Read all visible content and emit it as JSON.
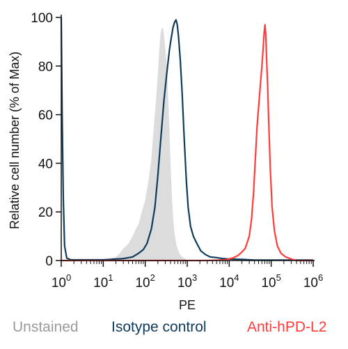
{
  "chart_data": {
    "type": "area",
    "title": "",
    "xlabel": "PE",
    "ylabel": "Relative cell number (% of Max)",
    "x_scale": "log",
    "xlim": [
      1,
      1000000
    ],
    "ylim": [
      0,
      100
    ],
    "x_ticks": [
      {
        "value": 1,
        "base": "10",
        "exp": "0"
      },
      {
        "value": 10,
        "base": "10",
        "exp": "1"
      },
      {
        "value": 100,
        "base": "10",
        "exp": "2"
      },
      {
        "value": 1000,
        "base": "10",
        "exp": "3"
      },
      {
        "value": 10000,
        "base": "10",
        "exp": "4"
      },
      {
        "value": 100000,
        "base": "10",
        "exp": "5"
      },
      {
        "value": 1000000,
        "base": "10",
        "exp": "6"
      }
    ],
    "y_ticks": [
      {
        "value": 0,
        "label": "0"
      },
      {
        "value": 20,
        "label": "20"
      },
      {
        "value": 40,
        "label": "40"
      },
      {
        "value": 60,
        "label": "60"
      },
      {
        "value": 80,
        "label": "80"
      },
      {
        "value": 100,
        "label": "100"
      }
    ],
    "grid": false,
    "legend_position": "bottom",
    "series": [
      {
        "name": "Unstained",
        "style": "filled",
        "color": "#dcdcdc",
        "points": [
          [
            1,
            0
          ],
          [
            5,
            0
          ],
          [
            10,
            0.3
          ],
          [
            14,
            0.8
          ],
          [
            20,
            1.5
          ],
          [
            25,
            3
          ],
          [
            30,
            5
          ],
          [
            35,
            6
          ],
          [
            40,
            7
          ],
          [
            50,
            10
          ],
          [
            60,
            13
          ],
          [
            70,
            15
          ],
          [
            80,
            19
          ],
          [
            100,
            25
          ],
          [
            120,
            33
          ],
          [
            140,
            42
          ],
          [
            160,
            55
          ],
          [
            180,
            66
          ],
          [
            200,
            77
          ],
          [
            215,
            86
          ],
          [
            230,
            93
          ],
          [
            250,
            96
          ],
          [
            270,
            95
          ],
          [
            290,
            90
          ],
          [
            310,
            85
          ],
          [
            330,
            78
          ],
          [
            350,
            68
          ],
          [
            375,
            55
          ],
          [
            400,
            40
          ],
          [
            430,
            27
          ],
          [
            460,
            18
          ],
          [
            500,
            11
          ],
          [
            560,
            6
          ],
          [
            650,
            3
          ],
          [
            750,
            1.5
          ],
          [
            900,
            0.6
          ],
          [
            1100,
            0
          ],
          [
            1000000,
            0
          ]
        ]
      },
      {
        "name": "Isotype control",
        "style": "line",
        "color": "#0e3b5c",
        "points": [
          [
            1,
            100
          ],
          [
            1.05,
            60
          ],
          [
            1.12,
            25
          ],
          [
            1.2,
            6
          ],
          [
            1.35,
            1
          ],
          [
            1.7,
            0.3
          ],
          [
            5,
            0.3
          ],
          [
            10,
            0.3
          ],
          [
            30,
            0.8
          ],
          [
            50,
            1.5
          ],
          [
            70,
            3
          ],
          [
            90,
            4.5
          ],
          [
            110,
            7
          ],
          [
            140,
            13
          ],
          [
            170,
            22
          ],
          [
            200,
            35
          ],
          [
            240,
            52
          ],
          [
            280,
            66
          ],
          [
            330,
            78
          ],
          [
            380,
            87
          ],
          [
            420,
            92
          ],
          [
            460,
            96
          ],
          [
            500,
            98
          ],
          [
            540,
            99
          ],
          [
            580,
            97
          ],
          [
            620,
            92
          ],
          [
            680,
            83
          ],
          [
            750,
            70
          ],
          [
            850,
            50
          ],
          [
            950,
            33
          ],
          [
            1050,
            22
          ],
          [
            1200,
            14
          ],
          [
            1400,
            10
          ],
          [
            1700,
            7
          ],
          [
            2100,
            4
          ],
          [
            2700,
            2.5
          ],
          [
            3500,
            1.5
          ],
          [
            5000,
            1.2
          ],
          [
            7000,
            0.8
          ],
          [
            10000,
            0.6
          ],
          [
            20000,
            0.5
          ],
          [
            40000,
            0.2
          ],
          [
            100000,
            0.2
          ],
          [
            1000000,
            0.2
          ]
        ]
      },
      {
        "name": "Anti-hPD-L2",
        "style": "line",
        "color": "#ff3b3b",
        "points": [
          [
            1,
            0
          ],
          [
            3000,
            0
          ],
          [
            8000,
            0.3
          ],
          [
            12000,
            1
          ],
          [
            16000,
            2
          ],
          [
            20000,
            3.5
          ],
          [
            24000,
            5
          ],
          [
            30000,
            10
          ],
          [
            34000,
            17
          ],
          [
            38000,
            28
          ],
          [
            42000,
            42
          ],
          [
            46000,
            55
          ],
          [
            50000,
            63
          ],
          [
            55000,
            72
          ],
          [
            60000,
            80
          ],
          [
            64000,
            87
          ],
          [
            68000,
            94
          ],
          [
            71000,
            97
          ],
          [
            74000,
            93
          ],
          [
            77000,
            85
          ],
          [
            82000,
            72
          ],
          [
            88000,
            55
          ],
          [
            95000,
            38
          ],
          [
            105000,
            22
          ],
          [
            120000,
            12
          ],
          [
            140000,
            6
          ],
          [
            170000,
            3
          ],
          [
            220000,
            1.5
          ],
          [
            300000,
            0.6
          ],
          [
            400000,
            0
          ],
          [
            1000000,
            0
          ]
        ]
      }
    ]
  }
}
